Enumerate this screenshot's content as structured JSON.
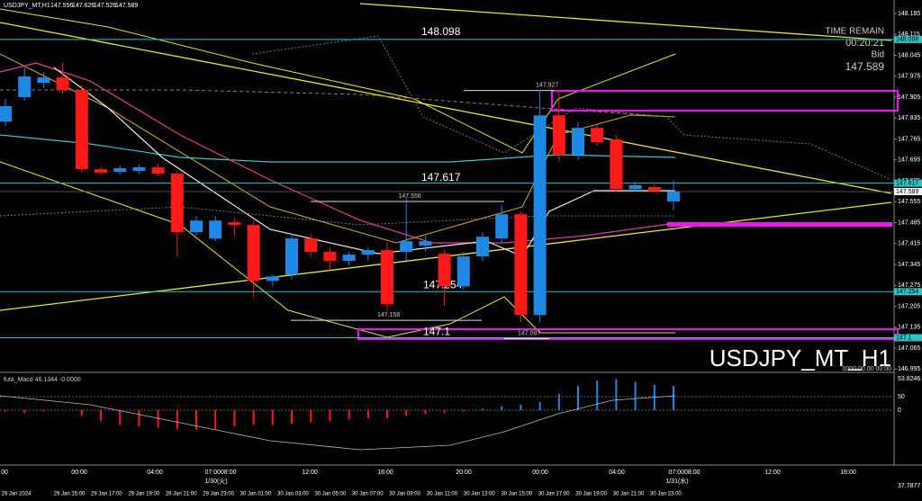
{
  "chart_data": {
    "type": "candlestick",
    "symbol": "USDJPY_MT,H1",
    "watermark": "USDJPY_MT_H1",
    "time_remain_label": "TIME REMAIN",
    "time_remain": "00:20:21",
    "bid_label": "Bid",
    "bid": 147.589,
    "up_color": "#1e88e5",
    "down_color": "#ff1a1a",
    "ylim": [
      146.99,
      148.23
    ],
    "yticks": [
      148.185,
      148.115,
      148.045,
      147.975,
      147.905,
      147.835,
      147.765,
      147.695,
      147.625,
      147.555,
      147.485,
      147.415,
      147.345,
      147.275,
      147.205,
      147.135,
      147.065,
      146.995
    ],
    "candles": [
      {
        "open": 147.823,
        "high": 147.899,
        "low": 147.808,
        "close": 147.875
      },
      {
        "open": 147.905,
        "high": 148.004,
        "low": 147.893,
        "close": 147.974
      },
      {
        "open": 147.953,
        "high": 147.989,
        "low": 147.935,
        "close": 147.971
      },
      {
        "open": 147.971,
        "high": 148.019,
        "low": 147.917,
        "close": 147.929
      },
      {
        "open": 147.929,
        "high": 147.944,
        "low": 147.652,
        "close": 147.664
      },
      {
        "open": 147.664,
        "high": 147.673,
        "low": 147.643,
        "close": 147.652
      },
      {
        "open": 147.655,
        "high": 147.676,
        "low": 147.646,
        "close": 147.667
      },
      {
        "open": 147.658,
        "high": 147.679,
        "low": 147.649,
        "close": 147.67
      },
      {
        "open": 147.67,
        "high": 147.682,
        "low": 147.64,
        "close": 147.649
      },
      {
        "open": 147.649,
        "high": 147.658,
        "low": 147.372,
        "close": 147.453
      },
      {
        "open": 147.453,
        "high": 147.507,
        "low": 147.441,
        "close": 147.492
      },
      {
        "open": 147.432,
        "high": 147.507,
        "low": 147.423,
        "close": 147.492
      },
      {
        "open": 147.486,
        "high": 147.501,
        "low": 147.441,
        "close": 147.477
      },
      {
        "open": 147.477,
        "high": 147.492,
        "low": 147.236,
        "close": 147.29
      },
      {
        "open": 147.29,
        "high": 147.311,
        "low": 147.272,
        "close": 147.305
      },
      {
        "open": 147.311,
        "high": 147.447,
        "low": 147.296,
        "close": 147.432
      },
      {
        "open": 147.432,
        "high": 147.447,
        "low": 147.372,
        "close": 147.387
      },
      {
        "open": 147.387,
        "high": 147.402,
        "low": 147.326,
        "close": 147.357
      },
      {
        "open": 147.357,
        "high": 147.387,
        "low": 147.341,
        "close": 147.378
      },
      {
        "open": 147.378,
        "high": 147.402,
        "low": 147.357,
        "close": 147.393
      },
      {
        "open": 147.393,
        "high": 147.417,
        "low": 147.191,
        "close": 147.212
      },
      {
        "open": 147.387,
        "high": 147.567,
        "low": 147.357,
        "close": 147.423
      },
      {
        "open": 147.408,
        "high": 147.441,
        "low": 147.387,
        "close": 147.423
      },
      {
        "open": 147.381,
        "high": 147.393,
        "low": 147.206,
        "close": 147.272
      },
      {
        "open": 147.272,
        "high": 147.387,
        "low": 147.26,
        "close": 147.372
      },
      {
        "open": 147.372,
        "high": 147.453,
        "low": 147.357,
        "close": 147.438
      },
      {
        "open": 147.432,
        "high": 147.543,
        "low": 147.417,
        "close": 147.513
      },
      {
        "open": 147.513,
        "high": 147.522,
        "low": 147.152,
        "close": 147.176
      },
      {
        "open": 147.176,
        "high": 147.929,
        "low": 147.152,
        "close": 147.844
      },
      {
        "open": 147.844,
        "high": 147.929,
        "low": 147.688,
        "close": 147.712
      },
      {
        "open": 147.712,
        "high": 147.823,
        "low": 147.694,
        "close": 147.802
      },
      {
        "open": 147.802,
        "high": 147.814,
        "low": 147.742,
        "close": 147.754
      },
      {
        "open": 147.763,
        "high": 147.778,
        "low": 147.591,
        "close": 147.597
      },
      {
        "open": 147.597,
        "high": 147.616,
        "low": 147.591,
        "close": 147.61
      },
      {
        "open": 147.604,
        "high": 147.613,
        "low": 147.585,
        "close": 147.591
      },
      {
        "open": 147.556,
        "high": 147.626,
        "low": 147.526,
        "close": 147.589
      }
    ],
    "levels": [
      148.098,
      147.617,
      147.254,
      147.1
    ],
    "level_color": "#2ec4c4",
    "annotations": [
      147.927,
      147.556,
      147.158,
      147.097
    ],
    "time_labels": [
      "00",
      "00:00",
      "04:00",
      "07:0008:00",
      "12:00",
      "16:00",
      "20:00",
      "00:00",
      "04:00",
      "07:0008:00",
      "12:00",
      "16:00"
    ],
    "date_labels": [
      "1/30(火)",
      "1/31(水)"
    ],
    "x_labels": [
      "29 Jan 2024",
      "29 Jan 15:00",
      "29 Jan 17:00",
      "29 Jan 19:00",
      "29 Jan 21:00",
      "29 Jan 23:00",
      "30 Jan 01:00",
      "30 Jan 03:00",
      "30 Jan 05:00",
      "30 Jan 07:00",
      "30 Jan 09:00",
      "30 Jan 11:00",
      "30 Jan 13:00",
      "30 Jan 15:00",
      "30 Jan 17:00",
      "30 Jan 19:00",
      "30 Jan 21:00",
      "30 Jan 23:00"
    ],
    "null_date": "0000.00.00 00:00",
    "macd": {
      "title": "futa_Macd 46.1344 -0.0000",
      "max_label": "53.8246",
      "min_label": "37.7877",
      "ylim": [
        -297,
        137
      ],
      "yticks": [
        50,
        0
      ],
      "values": [
        -5,
        -10,
        -5,
        0,
        -20,
        -40,
        -55,
        -60,
        -65,
        -70,
        -72,
        -70,
        -60,
        -55,
        -55,
        -50,
        -45,
        -40,
        -35,
        -30,
        -30,
        -20,
        -15,
        -10,
        -5,
        5,
        15,
        20,
        30,
        60,
        90,
        110,
        115,
        105,
        95,
        90
      ]
    }
  }
}
